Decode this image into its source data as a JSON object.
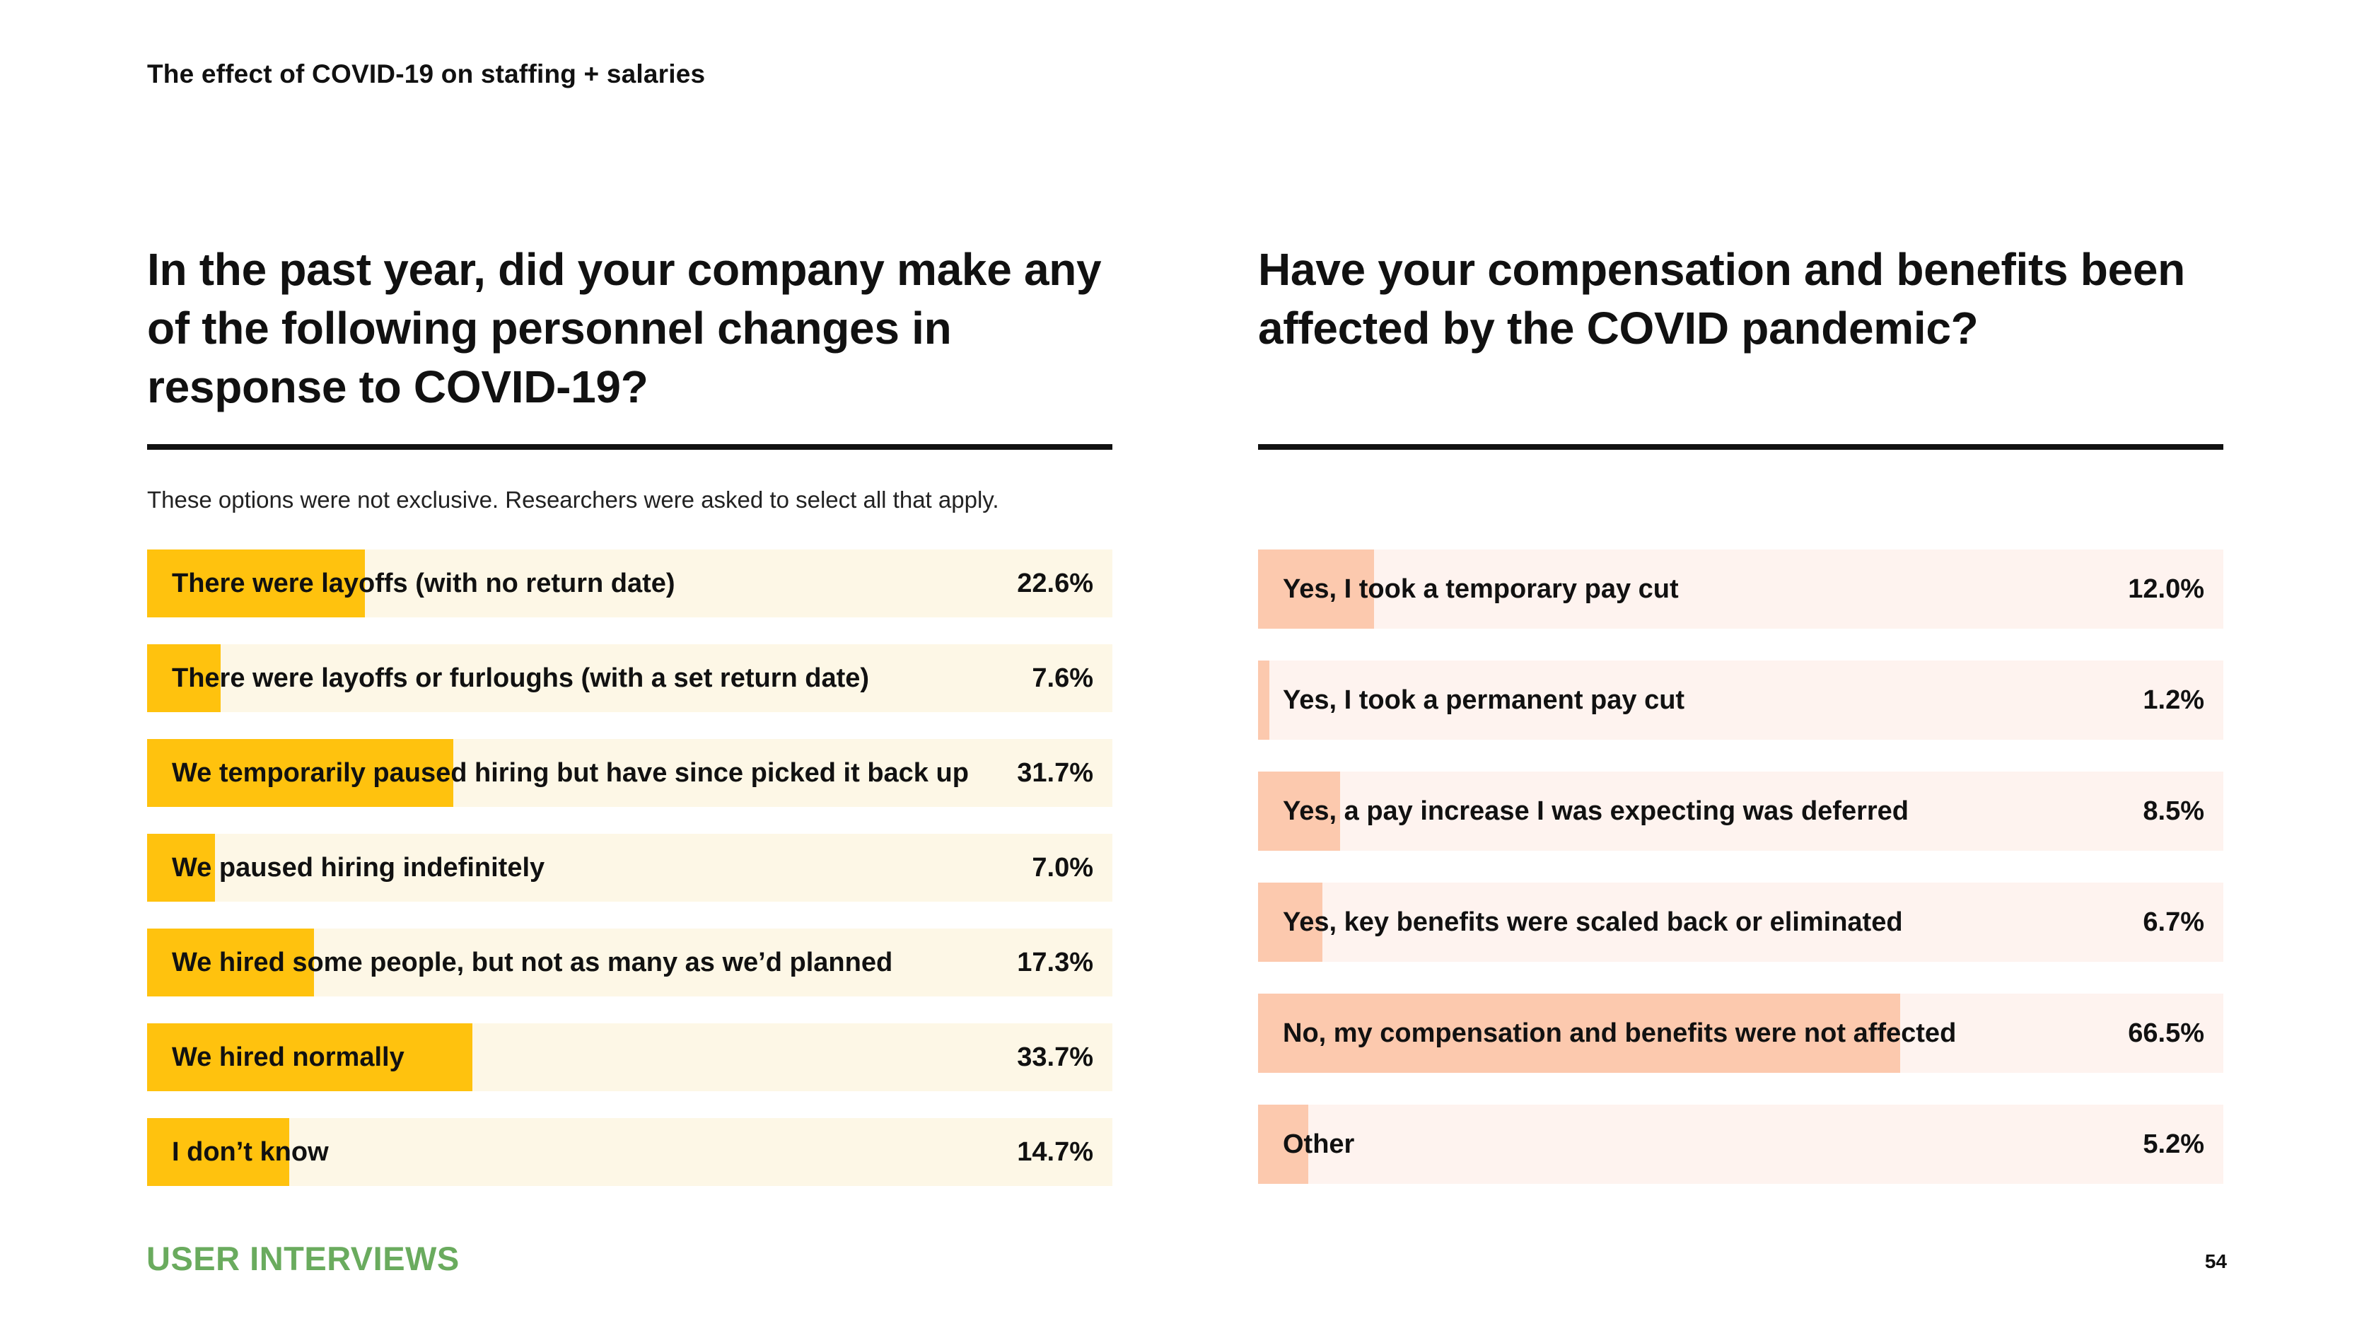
{
  "header": {
    "title": "The effect of COVID-19 on staffing + salaries"
  },
  "footer": {
    "brand": "USER INTERVIEWS",
    "page_number": "54"
  },
  "chart_data": [
    {
      "type": "bar",
      "orientation": "horizontal",
      "title": "In the past year, did your company make any of the following personnel changes in response to COVID-19?",
      "note": "These options were not exclusive. Researchers were asked to select all that apply.",
      "color": "#ffc20e",
      "track_color": "#fdf7e6",
      "xlim": [
        0,
        100
      ],
      "categories": [
        "There were layoffs (with no return date)",
        "There were layoffs or furloughs (with a set return date)",
        "We temporarily paused hiring but have since picked it back up",
        "We paused hiring indefinitely",
        "We hired some people, but not as many as we’d planned",
        "We hired normally",
        "I don’t know"
      ],
      "values": [
        22.6,
        7.6,
        31.7,
        7.0,
        17.3,
        33.7,
        14.7
      ],
      "value_labels": [
        "22.6%",
        "7.6%",
        "31.7%",
        "7.0%",
        "17.3%",
        "33.7%",
        "14.7%"
      ]
    },
    {
      "type": "bar",
      "orientation": "horizontal",
      "title": "Have your compensation and benefits been affected by the COVID pandemic?",
      "color": "#fcc9ae",
      "track_color": "#fef3ef",
      "xlim": [
        0,
        100
      ],
      "categories": [
        "Yes, I took a temporary pay cut",
        "Yes, I took a permanent pay cut",
        "Yes, a pay increase I was expecting was deferred",
        "Yes, key benefits were scaled back or eliminated",
        "No, my compensation and benefits were not affected",
        "Other"
      ],
      "values": [
        12.0,
        1.2,
        8.5,
        6.7,
        66.5,
        5.2
      ],
      "value_labels": [
        "12.0%",
        "1.2%",
        "8.5%",
        "6.7%",
        "66.5%",
        "5.2%"
      ]
    }
  ]
}
